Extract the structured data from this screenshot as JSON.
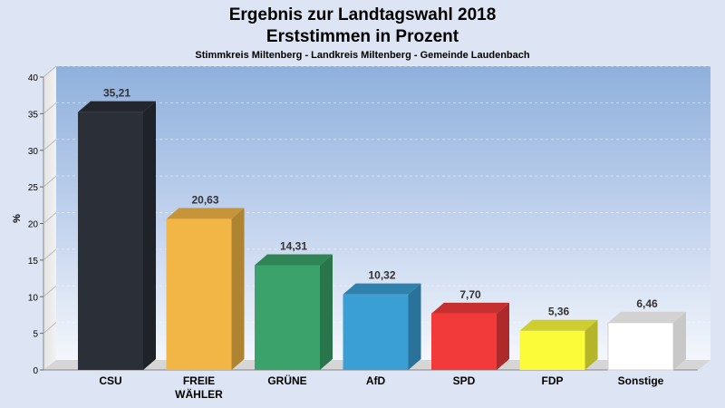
{
  "chart_data": {
    "type": "bar",
    "title": [
      "Ergebnis zur Landtagswahl 2018",
      "Erststimmen in Prozent"
    ],
    "subtitle": "Stimmkreis Miltenberg - Landkreis Miltenberg - Gemeinde Laudenbach",
    "ylabel": "%",
    "ylim": [
      0,
      40
    ],
    "yticks": [
      "0",
      "5",
      "10",
      "15",
      "20",
      "25",
      "30",
      "35",
      "40"
    ],
    "grid": true,
    "categories": [
      [
        "CSU"
      ],
      [
        "FREIE",
        "WÄHLER"
      ],
      [
        "GRÜNE"
      ],
      [
        "AfD"
      ],
      [
        "SPD"
      ],
      [
        "FDP"
      ],
      [
        "Sonstige"
      ]
    ],
    "values": [
      35.21,
      20.63,
      14.31,
      10.32,
      7.7,
      5.36,
      6.46
    ],
    "value_labels": [
      "35,21",
      "20,63",
      "14,31",
      "10,32",
      "7,70",
      "5,36",
      "6,46"
    ],
    "colors": [
      "#2b2f37",
      "#f2b646",
      "#3aa26a",
      "#3a9fd4",
      "#f23a3a",
      "#fbfb3a",
      "#ffffff"
    ]
  }
}
